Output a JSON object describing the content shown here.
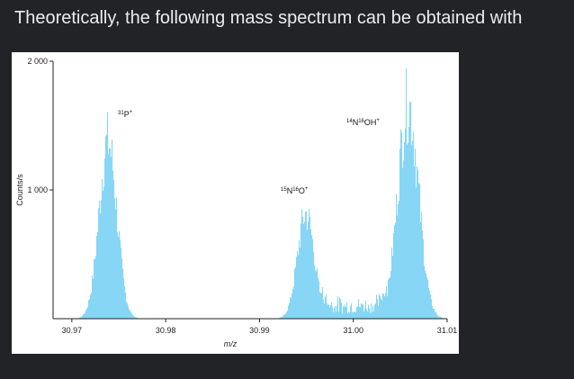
{
  "heading": "Theoretically, the following mass spectrum can be obtained with",
  "colors": {
    "background": "#222326",
    "card": "#ffffff",
    "bars": "#87d6f5",
    "axis": "#222222"
  },
  "chart_data": {
    "type": "bar",
    "title": "",
    "xlabel": "m/z",
    "ylabel": "Counts/s",
    "xlim": [
      30.968,
      31.01
    ],
    "ylim": [
      0,
      2000
    ],
    "x_ticks": [
      30.97,
      30.98,
      30.99,
      31.0,
      31.01
    ],
    "x_tick_labels": [
      "30.97",
      "30.98",
      "30.99",
      "31.00",
      "31.01"
    ],
    "y_ticks": [
      1000,
      2000
    ],
    "y_tick_labels": [
      "1 000",
      "2 000"
    ],
    "grid": false,
    "legend": "none",
    "peaks": [
      {
        "ion": "31P+",
        "label_base": "P",
        "mass_number": "31",
        "charge": "+",
        "mz": 30.9738,
        "max_counts": 1480
      },
      {
        "ion": "15N16O+",
        "label_parts": [
          "15",
          "N",
          "16",
          "O",
          "+"
        ],
        "mz": 30.9949,
        "max_counts": 880
      },
      {
        "ion": "14N16OH+",
        "label_parts": [
          "14",
          "N",
          "16",
          "OH",
          "+"
        ],
        "mz": 31.0058,
        "max_counts": 1800
      }
    ]
  }
}
